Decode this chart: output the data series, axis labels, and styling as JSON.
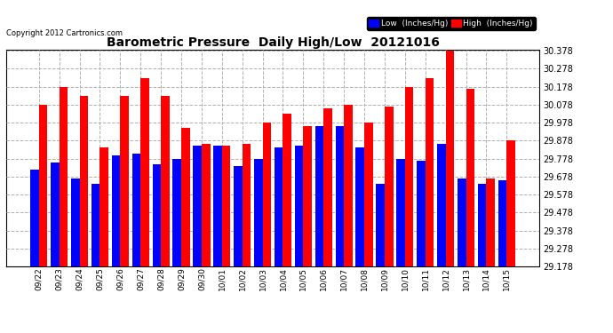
{
  "title": "Barometric Pressure  Daily High/Low  20121016",
  "copyright": "Copyright 2012 Cartronics.com",
  "legend_low": "Low  (Inches/Hg)",
  "legend_high": "High  (Inches/Hg)",
  "dates": [
    "09/22",
    "09/23",
    "09/24",
    "09/25",
    "09/26",
    "09/27",
    "09/28",
    "09/29",
    "09/30",
    "10/01",
    "10/02",
    "10/03",
    "10/04",
    "10/05",
    "10/06",
    "10/07",
    "10/08",
    "10/09",
    "10/10",
    "10/11",
    "10/12",
    "10/13",
    "10/14",
    "10/15"
  ],
  "low_values": [
    29.718,
    29.758,
    29.668,
    29.638,
    29.798,
    29.808,
    29.748,
    29.778,
    29.848,
    29.848,
    29.738,
    29.778,
    29.838,
    29.848,
    29.958,
    29.958,
    29.838,
    29.638,
    29.778,
    29.768,
    29.858,
    29.668,
    29.638,
    29.658
  ],
  "high_values": [
    30.078,
    30.178,
    30.128,
    29.838,
    30.128,
    30.228,
    30.128,
    29.948,
    29.858,
    29.848,
    29.858,
    29.978,
    30.028,
    29.958,
    30.058,
    30.078,
    29.978,
    30.068,
    30.178,
    30.228,
    30.378,
    30.168,
    29.668,
    29.878
  ],
  "ymin": 29.178,
  "ymax": 30.378,
  "yticks": [
    29.178,
    29.278,
    29.378,
    29.478,
    29.578,
    29.678,
    29.778,
    29.878,
    29.978,
    30.078,
    30.178,
    30.278,
    30.378
  ],
  "low_color": "#0000ff",
  "high_color": "#ff0000",
  "bg_color": "#ffffff",
  "grid_color": "#b0b0b0",
  "title_color": "#000000",
  "legend_bg_low": "#0000ff",
  "legend_bg_high": "#ff0000"
}
